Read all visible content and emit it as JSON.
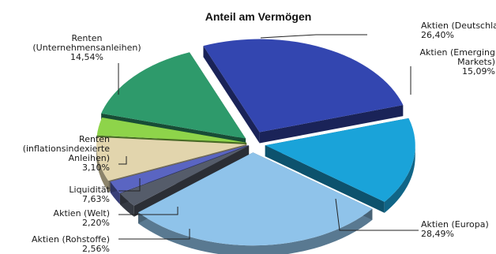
{
  "chart_data": {
    "type": "pie",
    "title": "Anteil am Vermögen",
    "slices": [
      {
        "label_lines": [
          "Aktien (Deutschland)"
        ],
        "value_text": "26,40%",
        "value": 26.4,
        "color": "#3346b0"
      },
      {
        "label_lines": [
          "Aktien (Emerging",
          "Markets)"
        ],
        "value_text": "15,09%",
        "value": 15.09,
        "color": "#1aa3d9"
      },
      {
        "label_lines": [
          "Aktien (Europa)"
        ],
        "value_text": "28,49%",
        "value": 28.49,
        "color": "#8fc3ea"
      },
      {
        "label_lines": [
          "Aktien (Rohstoffe)"
        ],
        "value_text": "2,56%",
        "value": 2.56,
        "color": "#555c6a"
      },
      {
        "label_lines": [
          "Aktien (Welt)"
        ],
        "value_text": "2,20%",
        "value": 2.2,
        "color": "#5a65c2"
      },
      {
        "label_lines": [
          "Liquidität"
        ],
        "value_text": "7,63%",
        "value": 7.63,
        "color": "#e2d5ad"
      },
      {
        "label_lines": [
          "Renten",
          "(inflationsindexierte",
          "Anleihen)"
        ],
        "value_text": "3,10%",
        "value": 3.1,
        "color": "#8ed44a"
      },
      {
        "label_lines": [
          "Renten",
          "(Unternehmensanleihen)"
        ],
        "value_text": "14,54%",
        "value": 14.54,
        "color": "#2e9a6b"
      }
    ]
  }
}
